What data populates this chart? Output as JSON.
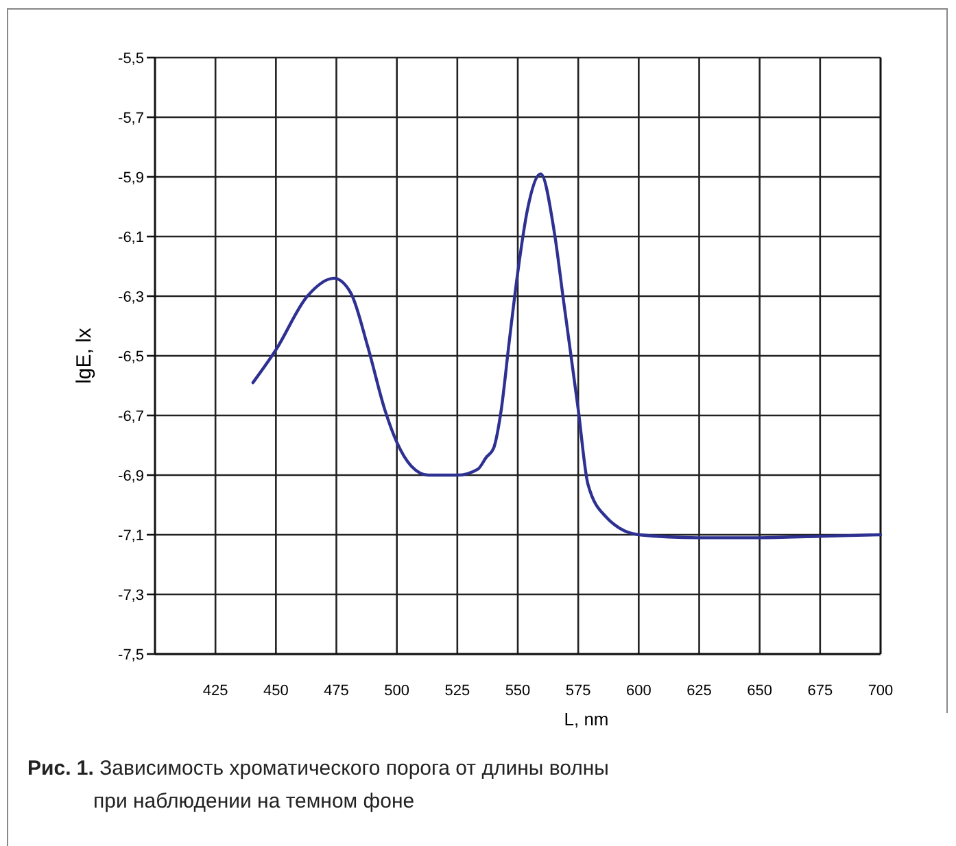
{
  "chart_data": {
    "type": "line",
    "xlabel": "L, nm",
    "ylabel": "lgE, lx",
    "annotations": [
      "Рис. 1. Зависимость хроматического порога от длины волны при наблюдении на темном фоне"
    ],
    "xlim": [
      400,
      700
    ],
    "xticks": [
      425,
      450,
      475,
      500,
      525,
      550,
      575,
      600,
      625,
      650,
      675,
      700
    ],
    "ylim": [
      -7.5,
      -5.5
    ],
    "yticks": [
      {
        "value": -5.5,
        "label": "-5,5"
      },
      {
        "value": -5.7,
        "label": "-5,7"
      },
      {
        "value": -5.9,
        "label": "-5,9"
      },
      {
        "value": -6.1,
        "label": "-6,1"
      },
      {
        "value": -6.3,
        "label": "-6,3"
      },
      {
        "value": -6.5,
        "label": "-6,5"
      },
      {
        "value": -6.7,
        "label": "-6,7"
      },
      {
        "value": -6.9,
        "label": "-6,9"
      },
      {
        "value": -7.1,
        "label": "-7,1"
      },
      {
        "value": -7.3,
        "label": "-7,3"
      },
      {
        "value": -7.5,
        "label": "-7,5"
      }
    ],
    "grid": true,
    "marker": "none",
    "line_style": "solid",
    "series": [
      {
        "color": "#2e3192",
        "x": [
          440.5,
          450,
          463,
          474,
          481,
          488,
          495,
          500,
          506,
          513,
          525,
          533.5,
          537,
          540,
          543,
          546.5,
          550,
          554,
          559.5,
          565,
          569,
          575,
          579,
          586.5,
          600,
          625,
          650,
          675,
          700
        ],
        "values": [
          -6.59,
          -6.48,
          -6.3,
          -6.24,
          -6.29,
          -6.47,
          -6.68,
          -6.79,
          -6.87,
          -6.9,
          -6.9,
          -6.88,
          -6.84,
          -6.81,
          -6.69,
          -6.45,
          -6.22,
          -6.01,
          -5.89,
          -6.08,
          -6.32,
          -6.68,
          -6.93,
          -7.04,
          -7.1,
          -7.11,
          -7.11,
          -7.105,
          -7.1
        ]
      }
    ]
  }
}
